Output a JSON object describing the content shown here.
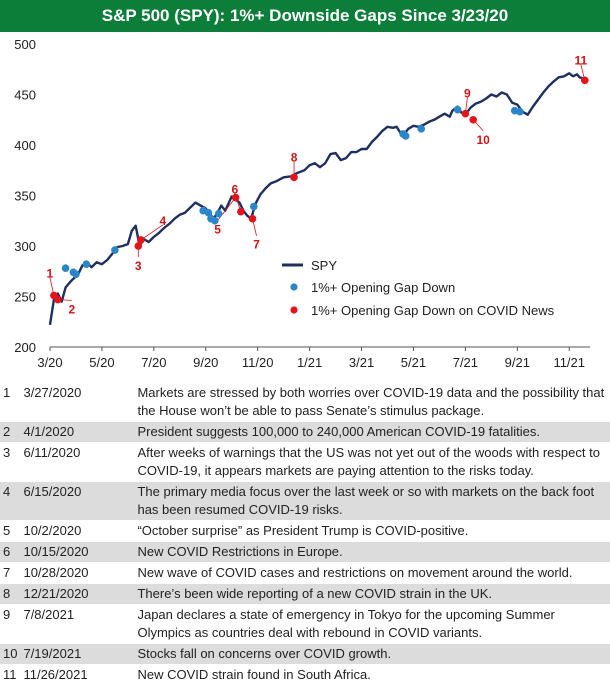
{
  "title": "S&P 500 (SPY): 1%+ Downside Gaps Since 3/23/20",
  "colors": {
    "header_bg": "#0d7d3a",
    "line": "#1f2f5e",
    "gap": "#2a86c8",
    "covid": "#e5141c",
    "label": "#d41418"
  },
  "chart_data": {
    "type": "line",
    "title": "S&P 500 (SPY): 1%+ Downside Gaps Since 3/23/20",
    "xlabel": "",
    "ylabel": "",
    "x_ticks": [
      {
        "label": "3/20",
        "t": 2
      },
      {
        "label": "5/20",
        "t": 4
      },
      {
        "label": "7/20",
        "t": 6
      },
      {
        "label": "9/20",
        "t": 8
      },
      {
        "label": "11/20",
        "t": 10
      },
      {
        "label": "1/21",
        "t": 12
      },
      {
        "label": "3/21",
        "t": 14
      },
      {
        "label": "5/21",
        "t": 16
      },
      {
        "label": "7/21",
        "t": 18
      },
      {
        "label": "9/21",
        "t": 20
      },
      {
        "label": "11/21",
        "t": 22
      }
    ],
    "xlim": [
      2,
      22.8
    ],
    "y_ticks": [
      200,
      250,
      300,
      350,
      400,
      450,
      500
    ],
    "ylim": [
      200,
      500
    ],
    "grid": false,
    "legend_position": "bottom-right",
    "series": [
      {
        "name": "SPY",
        "points": [
          [
            2.0,
            222
          ],
          [
            2.15,
            247
          ],
          [
            2.3,
            253
          ],
          [
            2.45,
            245
          ],
          [
            2.6,
            259
          ],
          [
            2.8,
            265
          ],
          [
            3.0,
            270
          ],
          [
            3.1,
            273
          ],
          [
            3.25,
            281
          ],
          [
            3.45,
            283
          ],
          [
            3.6,
            279
          ],
          [
            3.8,
            284
          ],
          [
            4.0,
            282
          ],
          [
            4.2,
            286
          ],
          [
            4.45,
            294
          ],
          [
            4.6,
            299
          ],
          [
            4.8,
            300
          ],
          [
            5.0,
            302
          ],
          [
            5.15,
            315
          ],
          [
            5.3,
            320
          ],
          [
            5.45,
            300
          ],
          [
            5.6,
            307
          ],
          [
            5.8,
            304
          ],
          [
            6.0,
            309
          ],
          [
            6.2,
            313
          ],
          [
            6.4,
            318
          ],
          [
            6.6,
            322
          ],
          [
            6.8,
            327
          ],
          [
            7.0,
            331
          ],
          [
            7.2,
            333
          ],
          [
            7.4,
            338
          ],
          [
            7.6,
            343
          ],
          [
            7.8,
            340
          ],
          [
            8.0,
            337
          ],
          [
            8.15,
            332
          ],
          [
            8.3,
            327
          ],
          [
            8.45,
            333
          ],
          [
            8.6,
            340
          ],
          [
            8.75,
            335
          ],
          [
            9.0,
            349
          ],
          [
            9.15,
            346
          ],
          [
            9.3,
            343
          ],
          [
            9.45,
            335
          ],
          [
            9.6,
            330
          ],
          [
            9.75,
            327
          ],
          [
            9.9,
            341
          ],
          [
            10.1,
            351
          ],
          [
            10.3,
            357
          ],
          [
            10.5,
            362
          ],
          [
            10.7,
            364
          ],
          [
            11.0,
            368
          ],
          [
            11.3,
            369
          ],
          [
            11.5,
            372
          ],
          [
            11.8,
            375
          ],
          [
            12.0,
            380
          ],
          [
            12.2,
            382
          ],
          [
            12.4,
            378
          ],
          [
            12.6,
            382
          ],
          [
            12.8,
            391
          ],
          [
            13.0,
            392
          ],
          [
            13.2,
            385
          ],
          [
            13.4,
            387
          ],
          [
            13.6,
            393
          ],
          [
            13.8,
            393
          ],
          [
            14.0,
            396
          ],
          [
            14.2,
            396
          ],
          [
            14.4,
            403
          ],
          [
            14.6,
            408
          ],
          [
            14.8,
            414
          ],
          [
            15.0,
            418
          ],
          [
            15.2,
            417
          ],
          [
            15.35,
            418
          ],
          [
            15.5,
            412
          ],
          [
            15.65,
            411
          ],
          [
            15.8,
            416
          ],
          [
            16.0,
            419
          ],
          [
            16.2,
            418
          ],
          [
            16.4,
            420
          ],
          [
            16.6,
            423
          ],
          [
            16.8,
            425
          ],
          [
            17.0,
            428
          ],
          [
            17.2,
            431
          ],
          [
            17.4,
            428
          ],
          [
            17.5,
            434
          ],
          [
            17.7,
            438
          ],
          [
            17.85,
            432
          ],
          [
            18.0,
            430
          ],
          [
            18.2,
            437
          ],
          [
            18.4,
            441
          ],
          [
            18.6,
            443
          ],
          [
            18.8,
            446
          ],
          [
            19.0,
            450
          ],
          [
            19.2,
            448
          ],
          [
            19.4,
            452
          ],
          [
            19.6,
            450
          ],
          [
            19.8,
            442
          ],
          [
            20.0,
            440
          ],
          [
            20.2,
            433
          ],
          [
            20.4,
            430
          ],
          [
            20.6,
            438
          ],
          [
            20.8,
            445
          ],
          [
            21.0,
            452
          ],
          [
            21.2,
            458
          ],
          [
            21.4,
            463
          ],
          [
            21.6,
            467
          ],
          [
            21.8,
            468
          ],
          [
            22.0,
            471
          ],
          [
            22.15,
            468
          ],
          [
            22.3,
            470
          ],
          [
            22.4,
            467
          ],
          [
            22.5,
            466
          ],
          [
            22.6,
            466
          ]
        ]
      },
      {
        "name": "1%+ Opening Gap Down",
        "points": [
          [
            2.6,
            278
          ],
          [
            2.9,
            274
          ],
          [
            3.0,
            272
          ],
          [
            3.4,
            282
          ],
          [
            4.5,
            296
          ],
          [
            7.9,
            335
          ],
          [
            8.1,
            333
          ],
          [
            8.2,
            327
          ],
          [
            8.35,
            325
          ],
          [
            8.5,
            332
          ],
          [
            9.85,
            339
          ],
          [
            15.6,
            411
          ],
          [
            15.7,
            409
          ],
          [
            16.3,
            416
          ],
          [
            17.7,
            435
          ],
          [
            19.9,
            434
          ],
          [
            20.1,
            433
          ]
        ]
      },
      {
        "name": "1%+ Opening Gap Down on COVID News",
        "points": [
          [
            2.15,
            251
          ],
          [
            2.3,
            247
          ],
          [
            5.4,
            300
          ],
          [
            5.5,
            306
          ],
          [
            9.15,
            348
          ],
          [
            9.35,
            334
          ],
          [
            9.8,
            327
          ],
          [
            11.4,
            368
          ],
          [
            18.0,
            431
          ],
          [
            18.3,
            425
          ],
          [
            22.6,
            464
          ]
        ]
      }
    ],
    "annotations": [
      {
        "text": "1",
        "x": 2.15,
        "y": 251
      },
      {
        "text": "2",
        "x": 2.3,
        "y": 247
      },
      {
        "text": "3",
        "x": 5.4,
        "y": 300
      },
      {
        "text": "4",
        "x": 5.5,
        "y": 306
      },
      {
        "text": "5",
        "x": 9.15,
        "y": 348
      },
      {
        "text": "6",
        "x": 9.35,
        "y": 334
      },
      {
        "text": "7",
        "x": 9.8,
        "y": 327
      },
      {
        "text": "8",
        "x": 11.4,
        "y": 368
      },
      {
        "text": "9",
        "x": 18.0,
        "y": 431
      },
      {
        "text": "10",
        "x": 18.3,
        "y": 425
      },
      {
        "text": "11",
        "x": 22.6,
        "y": 464
      }
    ]
  },
  "events": [
    {
      "num": "1",
      "date": "3/27/2020",
      "text": "Markets are stressed by both worries over COVID-19 data and the possibility that the House won’t be able to pass Senate’s stimulus package."
    },
    {
      "num": "2",
      "date": "4/1/2020",
      "text": "President suggests 100,000 to 240,000 American COVID-19 fatalities."
    },
    {
      "num": "3",
      "date": "6/11/2020",
      "text": "After weeks of warnings that the US was not yet out of the woods with respect to COVID-19, it appears markets are paying attention to the risks today."
    },
    {
      "num": "4",
      "date": "6/15/2020",
      "text": "The primary media focus over the last week or so with markets on the back foot has been resumed COVID-19 risks."
    },
    {
      "num": "5",
      "date": "10/2/2020",
      "text": "“October surprise” as President Trump is COVID-positive."
    },
    {
      "num": "6",
      "date": "10/15/2020",
      "text": "New COVID Restrictions in Europe."
    },
    {
      "num": "7",
      "date": "10/28/2020",
      "text": "New wave of COVID cases and restrictions on movement around the world."
    },
    {
      "num": "8",
      "date": "12/21/2020",
      "text": "There’s been wide reporting of a new COVID strain in the UK."
    },
    {
      "num": "9",
      "date": "7/8/2021",
      "text": "Japan declares a state of emergency in Tokyo for the upcoming Summer Olympics as countries deal with rebound in COVID variants."
    },
    {
      "num": "10",
      "date": "7/19/2021",
      "text": "Stocks fall on concerns over COVID growth."
    },
    {
      "num": "11",
      "date": "11/26/2021",
      "text": "New COVID strain found in South Africa."
    }
  ]
}
